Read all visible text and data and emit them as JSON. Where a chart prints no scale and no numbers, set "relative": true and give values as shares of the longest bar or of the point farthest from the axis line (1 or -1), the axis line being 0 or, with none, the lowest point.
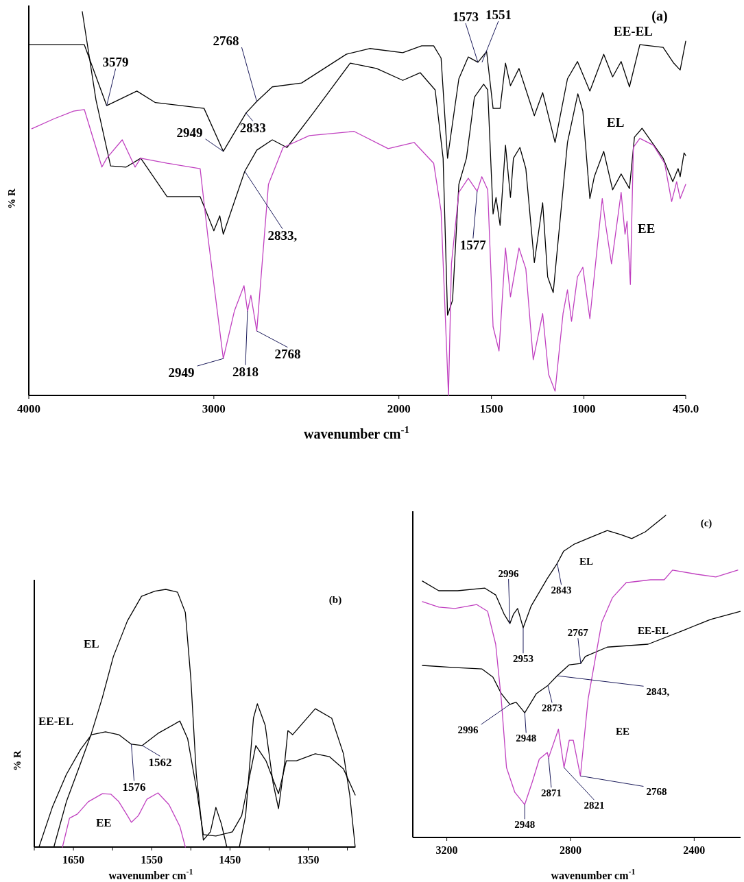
{
  "chart_data": [
    {
      "type": "line",
      "relative": true,
      "xlabel": "wavenumber cm$^{-1}$",
      "ylabel": "% R",
      "xlim": [
        4000,
        450
      ],
      "xticks": [
        4000,
        3000,
        2000,
        1500,
        1000,
        {
          "value": 450,
          "label": "450.0"
        }
      ],
      "series": [
        {
          "name": "EE-EL",
          "color": "#000000",
          "x": [
            4000,
            3700,
            3579,
            3416,
            3316,
            3053,
            2949,
            2826,
            2768,
            2684,
            2526,
            2284,
            2158,
            1979,
            1877,
            1812,
            1772,
            1737,
            1676,
            1625,
            1573,
            1526,
            1491,
            1453,
            1424,
            1397,
            1351,
            1268,
            1223,
            1156,
            1089,
            1035,
            968,
            893,
            845,
            799,
            754,
            698,
            572,
            515,
            480,
            450
          ],
          "values": [
            0.914,
            0.914,
            0.755,
            0.793,
            0.763,
            0.748,
            0.636,
            0.736,
            0.766,
            0.804,
            0.814,
            0.889,
            0.904,
            0.893,
            0.911,
            0.911,
            0.879,
            0.618,
            0.825,
            0.882,
            0.868,
            0.896,
            0.748,
            0.748,
            0.866,
            0.807,
            0.852,
            0.729,
            0.789,
            0.659,
            0.825,
            0.87,
            0.793,
            0.889,
            0.83,
            0.87,
            0.804,
            0.914,
            0.907,
            0.866,
            0.848,
            0.923
          ]
        },
        {
          "name": "EL",
          "color": "#000000",
          "x": [
            3711,
            3637,
            3558,
            3474,
            3395,
            3253,
            3074,
            3000,
            2968,
            2949,
            2833,
            2768,
            2684,
            2605,
            2463,
            2263,
            2121,
            1979,
            1885,
            1804,
            1761,
            1737,
            1710,
            1676,
            1635,
            1592,
            1542,
            1520,
            1491,
            1475,
            1453,
            1424,
            1397,
            1381,
            1346,
            1314,
            1268,
            1223,
            1196,
            1166,
            1089,
            1033,
            1006,
            968,
            944,
            893,
            845,
            799,
            754,
            727,
            686,
            572,
            520,
            491,
            480,
            459,
            450
          ],
          "values": [
            1,
            0.77,
            0.598,
            0.595,
            0.618,
            0.518,
            0.518,
            0.429,
            0.468,
            0.42,
            0.584,
            0.639,
            0.666,
            0.646,
            0.736,
            0.866,
            0.852,
            0.821,
            0.841,
            0.796,
            0.618,
            0.209,
            0.248,
            0.55,
            0.618,
            0.777,
            0.811,
            0.796,
            0.473,
            0.516,
            0.443,
            0.652,
            0.516,
            0.618,
            0.646,
            0.591,
            0.346,
            0.502,
            0.309,
            0.268,
            0.659,
            0.786,
            0.741,
            0.513,
            0.57,
            0.636,
            0.536,
            0.577,
            0.539,
            0.673,
            0.696,
            0.618,
            0.557,
            0.591,
            0.57,
            0.632,
            0.625
          ]
        },
        {
          "name": "EE",
          "color": "#c040c0",
          "x": [
            3984,
            3863,
            3758,
            3700,
            3605,
            3579,
            3495,
            3426,
            3395,
            3253,
            3074,
            3032,
            2949,
            2889,
            2837,
            2818,
            2800,
            2768,
            2705,
            2626,
            2484,
            2242,
            2058,
            1917,
            1812,
            1772,
            1732,
            1716,
            1676,
            1625,
            1577,
            1552,
            1520,
            1491,
            1459,
            1424,
            1397,
            1351,
            1314,
            1274,
            1223,
            1191,
            1156,
            1113,
            1089,
            1067,
            1035,
            1006,
            968,
            901,
            883,
            851,
            799,
            778,
            767,
            749,
            733,
            698,
            625,
            564,
            526,
            499,
            480,
            450
          ],
          "values": [
            0.695,
            0.721,
            0.741,
            0.745,
            0.595,
            0.618,
            0.666,
            0.595,
            0.618,
            0.605,
            0.591,
            0.413,
            0.096,
            0.22,
            0.286,
            0.22,
            0.261,
            0.168,
            0.55,
            0.646,
            0.677,
            0.688,
            0.643,
            0.659,
            0.605,
            0.48,
            0,
            0.343,
            0.529,
            0.566,
            0.532,
            0.57,
            0.536,
            0.179,
            0.116,
            0.384,
            0.257,
            0.384,
            0.33,
            0.093,
            0.213,
            0.055,
            0.011,
            0.213,
            0.275,
            0.193,
            0.309,
            0.334,
            0.2,
            0.513,
            0.446,
            0.343,
            0.529,
            0.42,
            0.454,
            0.289,
            0.646,
            0.67,
            0.652,
            0.605,
            0.505,
            0.557,
            0.513,
            0.55
          ]
        }
      ],
      "annotations": [
        "(a)",
        {
          "text": "3579",
          "x": 3579,
          "y": 0.755
        },
        {
          "text": "2768",
          "x": 2768,
          "y": 0.766
        },
        {
          "text": "2833",
          "x": 2826,
          "y": 0.736
        },
        {
          "text": "2949",
          "x": 2949,
          "y": 0.636
        },
        {
          "text": "2833,",
          "x": 2833,
          "y": 0.584
        },
        {
          "text": "1573",
          "x": 1573,
          "y": 0.868
        },
        {
          "text": "1551",
          "x": 1551,
          "y": 0.868
        },
        {
          "text": "1577",
          "x": 1577,
          "y": 0.532
        },
        {
          "text": "2949",
          "x": 2949,
          "y": 0.096
        },
        {
          "text": "2818",
          "x": 2818,
          "y": 0.22
        },
        {
          "text": "2768",
          "x": 2768,
          "y": 0.168
        }
      ]
    },
    {
      "type": "line",
      "relative": true,
      "xlabel": "wavenumber cm$^{-1}$",
      "ylabel": "% R",
      "xlim": [
        1700,
        1290
      ],
      "xticks": [
        {
          "value": 1700,
          "label": null
        },
        1650,
        {
          "value": 1600,
          "label": null
        },
        1550,
        {
          "value": 1500,
          "label": null
        },
        1450,
        {
          "value": 1400,
          "label": null
        },
        1350,
        {
          "value": 1300,
          "label": null
        }
      ],
      "series": [
        {
          "name": "EL",
          "color": "#000000",
          "x": [
            1675,
            1659,
            1641,
            1627,
            1613,
            1599,
            1581,
            1563,
            1546,
            1532,
            1517,
            1507,
            1500,
            1493,
            1484,
            1475,
            1468,
            1461,
            1454,
            1446,
            1438,
            1430,
            1420,
            1415,
            1405,
            1395,
            1388,
            1380,
            1376,
            1370,
            1341,
            1320,
            1305,
            1297,
            1290
          ],
          "values": [
            0,
            0.176,
            0.324,
            0.441,
            0.58,
            0.739,
            0.878,
            0.973,
            0.993,
            1,
            0.989,
            0.91,
            0.654,
            0.282,
            0.027,
            0.059,
            0.154,
            0.09,
            0,
            null,
            0,
            0.122,
            0.5,
            0.556,
            0.473,
            0.25,
            0.149,
            0.33,
            0.452,
            0.436,
            0.537,
            0.5,
            0.362,
            0.202,
            0
          ]
        },
        {
          "name": "EE-EL",
          "color": "#000000",
          "x": [
            1694,
            1677,
            1659,
            1641,
            1627,
            1609,
            1592,
            1576,
            1562,
            1542,
            1514,
            1504,
            1493,
            1484,
            1468,
            1447,
            1435,
            1417,
            1404,
            1388,
            1378,
            1365,
            1341,
            1323,
            1305,
            1290
          ],
          "values": [
            0,
            0.154,
            0.282,
            0.378,
            0.436,
            0.447,
            0.436,
            0.399,
            0.394,
            0.441,
            0.489,
            0.42,
            0.229,
            0.048,
            0.043,
            0.059,
            0.122,
            0.394,
            0.335,
            0.207,
            0.335,
            0.335,
            0.362,
            0.351,
            0.303,
            0.202
          ]
        },
        {
          "name": "EE",
          "color": "#c040c0",
          "x": [
            1664,
            1655,
            1645,
            1631,
            1613,
            1602,
            1592,
            1581,
            1576,
            1567,
            1556,
            1542,
            1528,
            1514,
            1507
          ],
          "values": [
            0,
            0.112,
            0.128,
            0.176,
            0.207,
            0.205,
            0.176,
            0.122,
            0.096,
            0.122,
            0.186,
            0.21,
            0.165,
            0.08,
            0
          ]
        }
      ],
      "annotations": [
        "(b)",
        {
          "text": "1576",
          "x": 1576,
          "y": 0.399
        },
        {
          "text": "1562",
          "x": 1562,
          "y": 0.394
        }
      ]
    },
    {
      "type": "line",
      "relative": true,
      "xlabel": "wavenumber cm$^{-1}$",
      "xlim": [
        3310,
        2250
      ],
      "xticks": [
        3200,
        2800,
        2400
      ],
      "series": [
        {
          "name": "EL",
          "color": "#000000",
          "x": [
            3279,
            3226,
            3165,
            3077,
            3042,
            3015,
            2996,
            2984,
            2971,
            2953,
            2927,
            2875,
            2843,
            2822,
            2787,
            2734,
            2681,
            2637,
            2602,
            2558,
            2492
          ],
          "values": [
            0.796,
            0.766,
            0.766,
            0.774,
            0.753,
            0.694,
            0.664,
            0.694,
            0.711,
            0.651,
            0.719,
            0.804,
            0.851,
            0.889,
            0.911,
            0.932,
            0.953,
            0.94,
            0.928,
            0.949,
            1
          ]
        },
        {
          "name": "EE-EL",
          "color": "#000000",
          "x": [
            3279,
            3182,
            3086,
            3051,
            3024,
            2996,
            2976,
            2948,
            2910,
            2873,
            2843,
            2804,
            2767,
            2752,
            2681,
            2549,
            2435,
            2347,
            2251
          ],
          "values": [
            0.534,
            0.528,
            0.523,
            0.498,
            0.447,
            0.413,
            0.42,
            0.387,
            0.447,
            0.472,
            0.502,
            0.536,
            0.54,
            0.562,
            0.591,
            0.6,
            0.643,
            0.677,
            0.702
          ]
        },
        {
          "name": "EE",
          "color": "#c040c0",
          "x": [
            3279,
            3226,
            3174,
            3103,
            3068,
            3042,
            3024,
            3007,
            2980,
            2948,
            2923,
            2901,
            2875,
            2871,
            2839,
            2821,
            2804,
            2791,
            2768,
            2743,
            2699,
            2664,
            2620,
            2541,
            2497,
            2470,
            2391,
            2330,
            2259
          ],
          "values": [
            0.732,
            0.715,
            0.711,
            0.723,
            0.702,
            0.6,
            0.43,
            0.217,
            0.14,
            0.102,
            0.174,
            0.243,
            0.264,
            0.247,
            0.336,
            0.217,
            0.302,
            0.302,
            0.191,
            0.43,
            0.668,
            0.745,
            0.791,
            0.8,
            0.8,
            0.83,
            0.817,
            0.809,
            0.83
          ]
        }
      ],
      "annotations": [
        "(c)",
        {
          "text": "2996",
          "x": 2996,
          "y": 0.664
        },
        {
          "text": "2953",
          "x": 2953,
          "y": 0.651
        },
        {
          "text": "2843",
          "x": 2843,
          "y": 0.851
        },
        {
          "text": "2767",
          "x": 2767,
          "y": 0.54
        },
        {
          "text": "2843,",
          "x": 2843,
          "y": 0.502
        },
        {
          "text": "2873",
          "x": 2873,
          "y": 0.472
        },
        {
          "text": "2996",
          "x": 2996,
          "y": 0.413
        },
        {
          "text": "2948",
          "x": 2948,
          "y": 0.387
        },
        {
          "text": "2948",
          "x": 2948,
          "y": 0.102
        },
        {
          "text": "2871",
          "x": 2871,
          "y": 0.247
        },
        {
          "text": "2821",
          "x": 2821,
          "y": 0.217
        },
        {
          "text": "2768",
          "x": 2768,
          "y": 0.191
        }
      ]
    }
  ]
}
